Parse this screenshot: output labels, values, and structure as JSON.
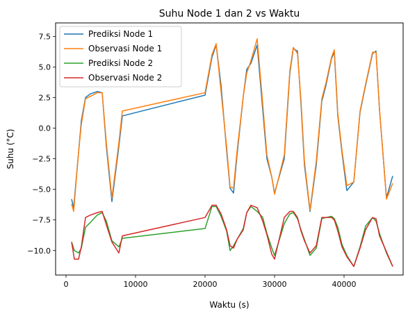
{
  "chart_data": {
    "type": "line",
    "title": "Suhu Node 1 dan 2 vs Waktu",
    "xlabel": "Waktu (s)",
    "ylabel": "Suhu (°C)",
    "xlim": [
      -1500,
      48500
    ],
    "ylim": [
      -12.0,
      8.6
    ],
    "xticks": [
      0,
      10000,
      20000,
      30000,
      40000
    ],
    "yticks": [
      -10.0,
      -7.5,
      -5.0,
      -2.5,
      0.0,
      2.5,
      5.0,
      7.5
    ],
    "grid": false,
    "legend_position": "upper-left",
    "series": [
      {
        "name": "Prediksi Node 1",
        "color": "#1f77b4",
        "x": [
          800,
          1100,
          1800,
          2200,
          2800,
          3500,
          4500,
          5200,
          5800,
          6600,
          7600,
          8100,
          20000,
          21000,
          21600,
          22300,
          23100,
          23600,
          24100,
          24600,
          25500,
          26000,
          26600,
          27500,
          28300,
          28900,
          29600,
          30000,
          31400,
          32200,
          32700,
          33300,
          33800,
          34300,
          35100,
          36000,
          36800,
          37400,
          38200,
          38600,
          39100,
          39700,
          40400,
          41400,
          42300,
          43100,
          44100,
          44600,
          45100,
          46100,
          47000
        ],
        "y": [
          -5.8,
          -6.5,
          -2.0,
          0.6,
          2.5,
          2.8,
          3.0,
          2.9,
          -1.5,
          -6.0,
          -1.5,
          1.0,
          2.7,
          5.8,
          6.8,
          3.5,
          -1.8,
          -4.9,
          -5.3,
          -2.2,
          2.6,
          4.8,
          5.3,
          6.8,
          1.5,
          -2.5,
          -4.0,
          -5.3,
          -2.5,
          4.5,
          6.5,
          6.3,
          2.0,
          -3.0,
          -6.8,
          -3.0,
          2.2,
          3.5,
          5.7,
          6.2,
          1.0,
          -2.0,
          -5.1,
          -4.4,
          1.3,
          3.5,
          6.1,
          6.3,
          1.5,
          -5.7,
          -3.9
        ]
      },
      {
        "name": "Observasi Node 1",
        "color": "#ff7f0e",
        "x": [
          800,
          1100,
          1800,
          2200,
          2800,
          3500,
          4500,
          5200,
          5800,
          6600,
          7600,
          8100,
          20000,
          21000,
          21600,
          22300,
          23100,
          23600,
          24100,
          24600,
          25500,
          26000,
          26600,
          27500,
          28300,
          28900,
          29600,
          30000,
          31400,
          32200,
          32700,
          33300,
          33800,
          34300,
          35100,
          36000,
          36800,
          37400,
          38200,
          38600,
          39100,
          39700,
          40400,
          41400,
          42300,
          43100,
          44100,
          44600,
          45100,
          46100,
          47000
        ],
        "y": [
          -6.2,
          -6.8,
          -2.0,
          0.3,
          2.4,
          2.6,
          2.9,
          2.9,
          -1.2,
          -5.7,
          -1.2,
          1.4,
          2.9,
          6.0,
          6.9,
          3.0,
          -1.5,
          -4.8,
          -4.9,
          -1.9,
          2.6,
          4.5,
          5.5,
          7.3,
          2.0,
          -2.2,
          -4.0,
          -5.4,
          -2.2,
          4.7,
          6.6,
          6.1,
          2.3,
          -2.7,
          -6.7,
          -2.7,
          2.4,
          3.7,
          5.8,
          6.4,
          1.2,
          -1.8,
          -4.7,
          -4.4,
          1.4,
          3.6,
          6.2,
          6.2,
          1.6,
          -5.8,
          -4.5
        ]
      },
      {
        "name": "Prediksi Node 2",
        "color": "#2ca02c",
        "x": [
          800,
          1200,
          1800,
          2200,
          2800,
          3500,
          4500,
          5200,
          5800,
          6600,
          7600,
          8100,
          20000,
          21000,
          21600,
          22300,
          23100,
          23600,
          24100,
          24600,
          25500,
          26000,
          26600,
          27500,
          28300,
          28900,
          29600,
          30000,
          31400,
          32200,
          32700,
          33300,
          33800,
          34300,
          35100,
          36000,
          36800,
          37400,
          38200,
          38600,
          39100,
          39700,
          40400,
          41400,
          42300,
          43100,
          44100,
          44600,
          45100,
          46100,
          47000
        ],
        "y": [
          -9.3,
          -10.0,
          -10.2,
          -9.8,
          -8.1,
          -7.7,
          -7.1,
          -6.9,
          -7.6,
          -9.2,
          -9.7,
          -9.0,
          -8.2,
          -6.4,
          -6.4,
          -7.2,
          -8.4,
          -10.0,
          -9.6,
          -9.1,
          -8.2,
          -6.9,
          -6.4,
          -6.8,
          -7.3,
          -8.6,
          -9.8,
          -10.4,
          -7.8,
          -7.0,
          -6.9,
          -7.4,
          -8.3,
          -9.1,
          -10.4,
          -9.8,
          -7.4,
          -7.3,
          -7.2,
          -7.4,
          -8.1,
          -9.5,
          -10.4,
          -11.3,
          -9.7,
          -8.0,
          -7.3,
          -7.6,
          -8.6,
          -10.2,
          -11.3
        ]
      },
      {
        "name": "Observasi Node 2",
        "color": "#d62728",
        "x": [
          800,
          1200,
          1800,
          2200,
          2800,
          3500,
          4500,
          5200,
          5800,
          6600,
          7600,
          8100,
          20000,
          21000,
          21600,
          22300,
          23100,
          23600,
          24100,
          24600,
          25500,
          26000,
          26600,
          27500,
          28300,
          28900,
          29600,
          30000,
          31400,
          32200,
          32700,
          33300,
          33800,
          34300,
          35100,
          36000,
          36800,
          37400,
          38200,
          38600,
          39100,
          39700,
          40400,
          41400,
          42300,
          43100,
          44100,
          44600,
          45100,
          46100,
          47000
        ],
        "y": [
          -9.3,
          -10.7,
          -10.7,
          -9.7,
          -7.3,
          -7.1,
          -6.9,
          -6.8,
          -7.9,
          -9.3,
          -10.2,
          -8.8,
          -7.3,
          -6.3,
          -6.3,
          -7.0,
          -8.3,
          -9.6,
          -9.8,
          -9.1,
          -8.3,
          -6.9,
          -6.3,
          -6.5,
          -7.6,
          -8.7,
          -10.3,
          -10.7,
          -7.3,
          -6.8,
          -6.8,
          -7.3,
          -8.4,
          -9.2,
          -10.2,
          -9.6,
          -7.3,
          -7.3,
          -7.3,
          -7.5,
          -8.4,
          -9.7,
          -10.5,
          -11.3,
          -9.8,
          -8.3,
          -7.3,
          -7.4,
          -8.8,
          -10.1,
          -11.3
        ]
      }
    ]
  }
}
